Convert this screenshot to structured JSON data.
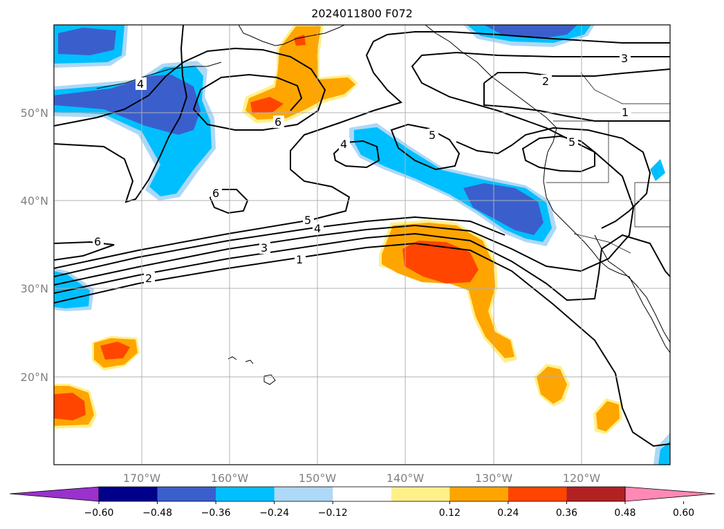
{
  "title": "2024011800 F072",
  "map": {
    "lon_labels": [
      "170°W",
      "160°W",
      "150°W",
      "140°W",
      "130°W",
      "120°W"
    ],
    "lat_labels": [
      "50°N",
      "40°N",
      "30°N",
      "20°N"
    ],
    "contour_labels": [
      "6",
      "4",
      "5",
      "5",
      "6",
      "6",
      "5",
      "4",
      "3",
      "2",
      "1",
      "3",
      "2",
      "1",
      "4"
    ],
    "grid": true
  },
  "colorbar": {
    "tick_labels": [
      "−0.60",
      "−0.48",
      "−0.36",
      "−0.24",
      "−0.12",
      "0.12",
      "0.24",
      "0.36",
      "0.48",
      "0.60"
    ],
    "colors": [
      "#9932cc",
      "#00008b",
      "#3a5fcd",
      "#00bfff",
      "#add8f6",
      "#ffffff",
      "#fff08a",
      "#ffa500",
      "#ff4500",
      "#b22222",
      "#ff89b4"
    ]
  }
}
